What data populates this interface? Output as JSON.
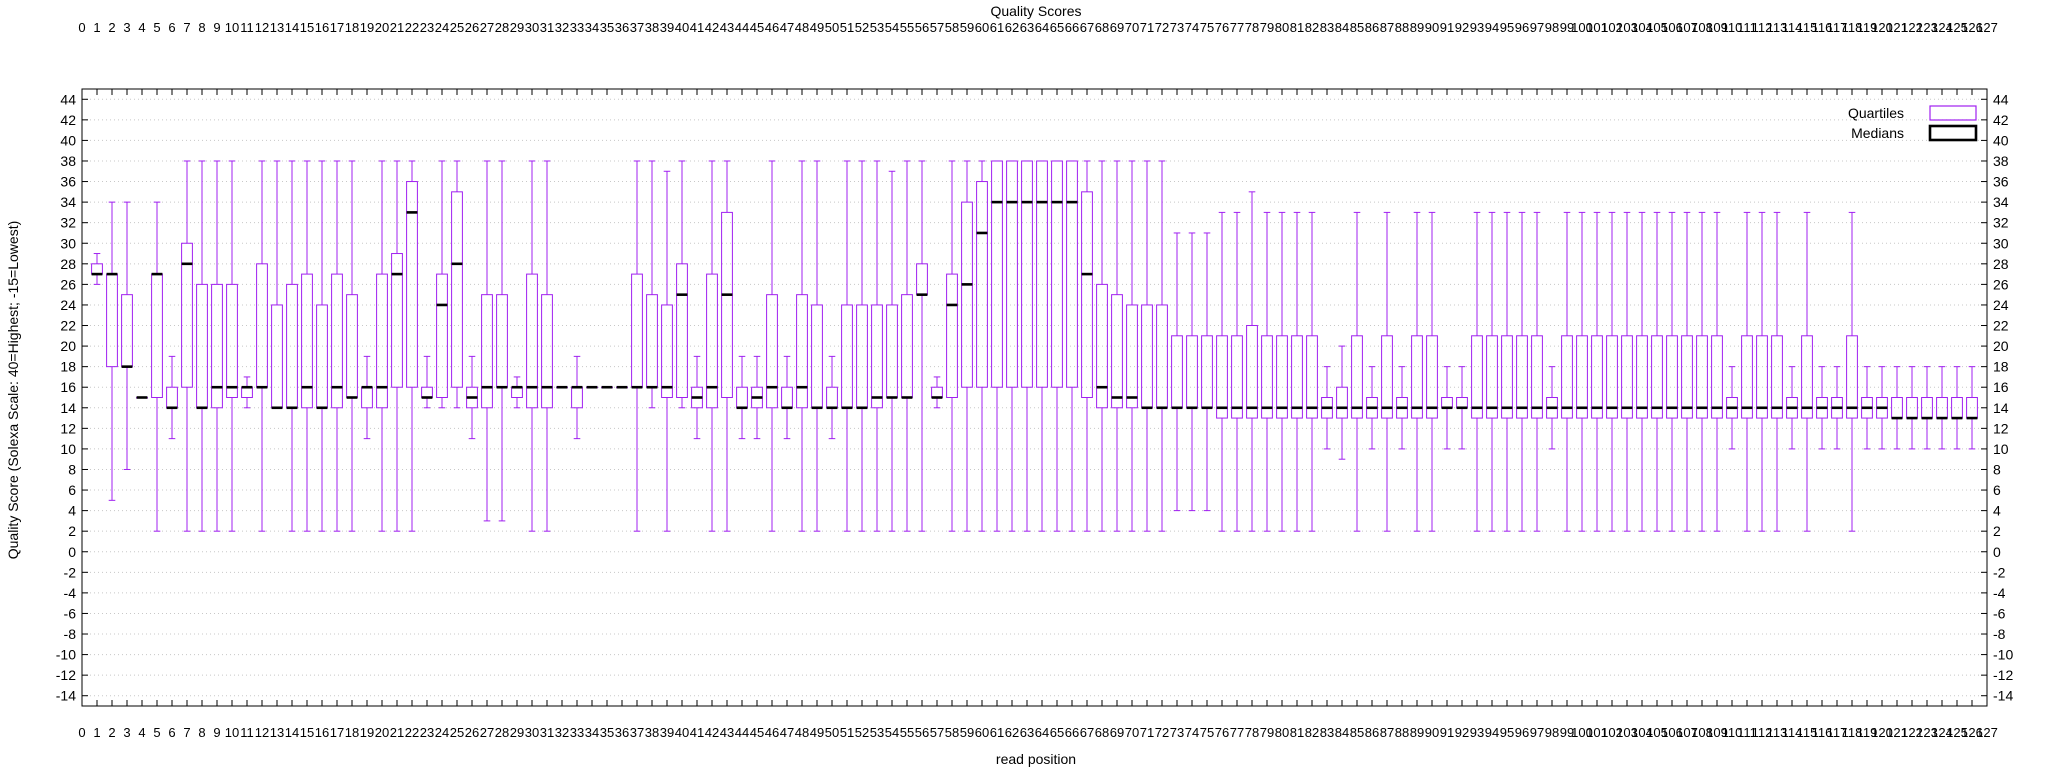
{
  "colors": {
    "quartile_box": "#a020f0",
    "median": "#000000",
    "grid": "#c8c8c8"
  },
  "chart_data": {
    "type": "box",
    "title": "Quality Scores",
    "xlabel": "read position",
    "ylabel": "Quality Score (Solexa Scale: 40=Highest; -15=Lowest)",
    "xlim": [
      0,
      127
    ],
    "ylim": [
      -15,
      45
    ],
    "y_ticks": [
      -14,
      -12,
      -10,
      -8,
      -6,
      -4,
      -2,
      0,
      2,
      4,
      6,
      8,
      10,
      12,
      14,
      16,
      18,
      20,
      22,
      24,
      26,
      28,
      30,
      32,
      34,
      36,
      38,
      40,
      42,
      44
    ],
    "grid": "horizontal dotted",
    "legend_position": "top-right",
    "legend": [
      "Quartiles",
      "Medians"
    ],
    "boxes": [
      {
        "x": 1,
        "min": 26,
        "q1": 27,
        "median": 27,
        "q3": 28,
        "max": 29
      },
      {
        "x": 2,
        "min": 5,
        "q1": 18,
        "median": 27,
        "q3": 27,
        "max": 34
      },
      {
        "x": 3,
        "min": 8,
        "q1": 18,
        "median": 18,
        "q3": 25,
        "max": 34
      },
      {
        "x": 4,
        "min": 15,
        "q1": 15,
        "median": 15,
        "q3": 15,
        "max": 15
      },
      {
        "x": 5,
        "min": 2,
        "q1": 15,
        "median": 27,
        "q3": 27,
        "max": 34
      },
      {
        "x": 6,
        "min": 11,
        "q1": 14,
        "median": 14,
        "q3": 16,
        "max": 19
      },
      {
        "x": 7,
        "min": 2,
        "q1": 16,
        "median": 28,
        "q3": 30,
        "max": 38
      },
      {
        "x": 8,
        "min": 2,
        "q1": 14,
        "median": 14,
        "q3": 26,
        "max": 38
      },
      {
        "x": 9,
        "min": 2,
        "q1": 14,
        "median": 16,
        "q3": 26,
        "max": 38
      },
      {
        "x": 10,
        "min": 2,
        "q1": 15,
        "median": 16,
        "q3": 26,
        "max": 38
      },
      {
        "x": 11,
        "min": 14,
        "q1": 15,
        "median": 16,
        "q3": 16,
        "max": 17
      },
      {
        "x": 12,
        "min": 2,
        "q1": 16,
        "median": 16,
        "q3": 28,
        "max": 38
      },
      {
        "x": 13,
        "min": 14,
        "q1": 14,
        "median": 14,
        "q3": 24,
        "max": 38
      },
      {
        "x": 14,
        "min": 2,
        "q1": 14,
        "median": 14,
        "q3": 26,
        "max": 38
      },
      {
        "x": 15,
        "min": 2,
        "q1": 14,
        "median": 16,
        "q3": 27,
        "max": 38
      },
      {
        "x": 16,
        "min": 2,
        "q1": 14,
        "median": 14,
        "q3": 24,
        "max": 38
      },
      {
        "x": 17,
        "min": 2,
        "q1": 14,
        "median": 16,
        "q3": 27,
        "max": 38
      },
      {
        "x": 18,
        "min": 2,
        "q1": 15,
        "median": 15,
        "q3": 25,
        "max": 38
      },
      {
        "x": 19,
        "min": 11,
        "q1": 14,
        "median": 16,
        "q3": 16,
        "max": 19
      },
      {
        "x": 20,
        "min": 2,
        "q1": 14,
        "median": 16,
        "q3": 27,
        "max": 38
      },
      {
        "x": 21,
        "min": 2,
        "q1": 16,
        "median": 27,
        "q3": 29,
        "max": 38
      },
      {
        "x": 22,
        "min": 2,
        "q1": 16,
        "median": 33,
        "q3": 36,
        "max": 38
      },
      {
        "x": 23,
        "min": 14,
        "q1": 15,
        "median": 15,
        "q3": 16,
        "max": 19
      },
      {
        "x": 24,
        "min": 14,
        "q1": 15,
        "median": 24,
        "q3": 27,
        "max": 38
      },
      {
        "x": 25,
        "min": 14,
        "q1": 16,
        "median": 28,
        "q3": 35,
        "max": 38
      },
      {
        "x": 26,
        "min": 11,
        "q1": 14,
        "median": 15,
        "q3": 16,
        "max": 19
      },
      {
        "x": 27,
        "min": 3,
        "q1": 14,
        "median": 16,
        "q3": 25,
        "max": 38
      },
      {
        "x": 28,
        "min": 3,
        "q1": 16,
        "median": 16,
        "q3": 25,
        "max": 38
      },
      {
        "x": 29,
        "min": 14,
        "q1": 15,
        "median": 16,
        "q3": 16,
        "max": 17
      },
      {
        "x": 30,
        "min": 2,
        "q1": 14,
        "median": 16,
        "q3": 27,
        "max": 38
      },
      {
        "x": 31,
        "min": 2,
        "q1": 14,
        "median": 16,
        "q3": 25,
        "max": 38
      },
      {
        "x": 32,
        "min": 16,
        "q1": 16,
        "median": 16,
        "q3": 16,
        "max": 16
      },
      {
        "x": 33,
        "min": 11,
        "q1": 14,
        "median": 16,
        "q3": 16,
        "max": 19
      },
      {
        "x": 34,
        "min": 16,
        "q1": 16,
        "median": 16,
        "q3": 16,
        "max": 16
      },
      {
        "x": 35,
        "min": 16,
        "q1": 16,
        "median": 16,
        "q3": 16,
        "max": 16
      },
      {
        "x": 36,
        "min": 16,
        "q1": 16,
        "median": 16,
        "q3": 16,
        "max": 16
      },
      {
        "x": 37,
        "min": 2,
        "q1": 16,
        "median": 16,
        "q3": 27,
        "max": 38
      },
      {
        "x": 38,
        "min": 14,
        "q1": 16,
        "median": 16,
        "q3": 25,
        "max": 38
      },
      {
        "x": 39,
        "min": 2,
        "q1": 15,
        "median": 16,
        "q3": 24,
        "max": 37
      },
      {
        "x": 40,
        "min": 14,
        "q1": 15,
        "median": 25,
        "q3": 28,
        "max": 38
      },
      {
        "x": 41,
        "min": 11,
        "q1": 14,
        "median": 15,
        "q3": 16,
        "max": 19
      },
      {
        "x": 42,
        "min": 2,
        "q1": 14,
        "median": 16,
        "q3": 27,
        "max": 38
      },
      {
        "x": 43,
        "min": 2,
        "q1": 15,
        "median": 25,
        "q3": 33,
        "max": 38
      },
      {
        "x": 44,
        "min": 11,
        "q1": 14,
        "median": 14,
        "q3": 16,
        "max": 19
      },
      {
        "x": 45,
        "min": 11,
        "q1": 14,
        "median": 15,
        "q3": 16,
        "max": 19
      },
      {
        "x": 46,
        "min": 2,
        "q1": 14,
        "median": 16,
        "q3": 25,
        "max": 38
      },
      {
        "x": 47,
        "min": 11,
        "q1": 14,
        "median": 14,
        "q3": 16,
        "max": 19
      },
      {
        "x": 48,
        "min": 2,
        "q1": 14,
        "median": 16,
        "q3": 25,
        "max": 38
      },
      {
        "x": 49,
        "min": 2,
        "q1": 14,
        "median": 14,
        "q3": 24,
        "max": 38
      },
      {
        "x": 50,
        "min": 11,
        "q1": 14,
        "median": 14,
        "q3": 16,
        "max": 19
      },
      {
        "x": 51,
        "min": 2,
        "q1": 14,
        "median": 14,
        "q3": 24,
        "max": 38
      },
      {
        "x": 52,
        "min": 2,
        "q1": 14,
        "median": 14,
        "q3": 24,
        "max": 38
      },
      {
        "x": 53,
        "min": 2,
        "q1": 14,
        "median": 15,
        "q3": 24,
        "max": 38
      },
      {
        "x": 54,
        "min": 2,
        "q1": 15,
        "median": 15,
        "q3": 24,
        "max": 37
      },
      {
        "x": 55,
        "min": 2,
        "q1": 15,
        "median": 15,
        "q3": 25,
        "max": 38
      },
      {
        "x": 56,
        "min": 2,
        "q1": 25,
        "median": 25,
        "q3": 28,
        "max": 38
      },
      {
        "x": 57,
        "min": 14,
        "q1": 15,
        "median": 15,
        "q3": 16,
        "max": 17
      },
      {
        "x": 58,
        "min": 2,
        "q1": 15,
        "median": 24,
        "q3": 27,
        "max": 38
      },
      {
        "x": 59,
        "min": 2,
        "q1": 16,
        "median": 26,
        "q3": 34,
        "max": 38
      },
      {
        "x": 60,
        "min": 2,
        "q1": 16,
        "median": 31,
        "q3": 36,
        "max": 38
      },
      {
        "x": 61,
        "min": 2,
        "q1": 16,
        "median": 34,
        "q3": 38,
        "max": 38
      },
      {
        "x": 62,
        "min": 2,
        "q1": 16,
        "median": 34,
        "q3": 38,
        "max": 38
      },
      {
        "x": 63,
        "min": 2,
        "q1": 16,
        "median": 34,
        "q3": 38,
        "max": 38
      },
      {
        "x": 64,
        "min": 2,
        "q1": 16,
        "median": 34,
        "q3": 38,
        "max": 38
      },
      {
        "x": 65,
        "min": 2,
        "q1": 16,
        "median": 34,
        "q3": 38,
        "max": 38
      },
      {
        "x": 66,
        "min": 2,
        "q1": 16,
        "median": 34,
        "q3": 38,
        "max": 38
      },
      {
        "x": 67,
        "min": 2,
        "q1": 15,
        "median": 27,
        "q3": 35,
        "max": 38
      },
      {
        "x": 68,
        "min": 2,
        "q1": 14,
        "median": 16,
        "q3": 26,
        "max": 38
      },
      {
        "x": 69,
        "min": 2,
        "q1": 14,
        "median": 15,
        "q3": 25,
        "max": 38
      },
      {
        "x": 70,
        "min": 2,
        "q1": 14,
        "median": 15,
        "q3": 24,
        "max": 38
      },
      {
        "x": 71,
        "min": 2,
        "q1": 14,
        "median": 14,
        "q3": 24,
        "max": 38
      },
      {
        "x": 72,
        "min": 2,
        "q1": 14,
        "median": 14,
        "q3": 24,
        "max": 38
      },
      {
        "x": 73,
        "min": 4,
        "q1": 14,
        "median": 14,
        "q3": 21,
        "max": 31
      },
      {
        "x": 74,
        "min": 4,
        "q1": 14,
        "median": 14,
        "q3": 21,
        "max": 31
      },
      {
        "x": 75,
        "min": 4,
        "q1": 14,
        "median": 14,
        "q3": 21,
        "max": 31
      },
      {
        "x": 76,
        "min": 2,
        "q1": 13,
        "median": 14,
        "q3": 21,
        "max": 33
      },
      {
        "x": 77,
        "min": 2,
        "q1": 13,
        "median": 14,
        "q3": 21,
        "max": 33
      },
      {
        "x": 78,
        "min": 2,
        "q1": 13,
        "median": 14,
        "q3": 22,
        "max": 35
      },
      {
        "x": 79,
        "min": 2,
        "q1": 13,
        "median": 14,
        "q3": 21,
        "max": 33
      },
      {
        "x": 80,
        "min": 2,
        "q1": 13,
        "median": 14,
        "q3": 21,
        "max": 33
      },
      {
        "x": 81,
        "min": 2,
        "q1": 13,
        "median": 14,
        "q3": 21,
        "max": 33
      },
      {
        "x": 82,
        "min": 2,
        "q1": 13,
        "median": 14,
        "q3": 21,
        "max": 33
      },
      {
        "x": 83,
        "min": 10,
        "q1": 13,
        "median": 14,
        "q3": 15,
        "max": 18
      },
      {
        "x": 84,
        "min": 9,
        "q1": 13,
        "median": 14,
        "q3": 16,
        "max": 20
      },
      {
        "x": 85,
        "min": 2,
        "q1": 13,
        "median": 14,
        "q3": 21,
        "max": 33
      },
      {
        "x": 86,
        "min": 10,
        "q1": 13,
        "median": 14,
        "q3": 15,
        "max": 18
      },
      {
        "x": 87,
        "min": 2,
        "q1": 13,
        "median": 14,
        "q3": 21,
        "max": 33
      },
      {
        "x": 88,
        "min": 10,
        "q1": 13,
        "median": 14,
        "q3": 15,
        "max": 18
      },
      {
        "x": 89,
        "min": 2,
        "q1": 13,
        "median": 14,
        "q3": 21,
        "max": 33
      },
      {
        "x": 90,
        "min": 2,
        "q1": 13,
        "median": 14,
        "q3": 21,
        "max": 33
      },
      {
        "x": 91,
        "min": 10,
        "q1": 14,
        "median": 14,
        "q3": 15,
        "max": 18
      },
      {
        "x": 92,
        "min": 10,
        "q1": 14,
        "median": 14,
        "q3": 15,
        "max": 18
      },
      {
        "x": 93,
        "min": 2,
        "q1": 13,
        "median": 14,
        "q3": 21,
        "max": 33
      },
      {
        "x": 94,
        "min": 2,
        "q1": 13,
        "median": 14,
        "q3": 21,
        "max": 33
      },
      {
        "x": 95,
        "min": 2,
        "q1": 13,
        "median": 14,
        "q3": 21,
        "max": 33
      },
      {
        "x": 96,
        "min": 2,
        "q1": 13,
        "median": 14,
        "q3": 21,
        "max": 33
      },
      {
        "x": 97,
        "min": 2,
        "q1": 13,
        "median": 14,
        "q3": 21,
        "max": 33
      },
      {
        "x": 98,
        "min": 10,
        "q1": 13,
        "median": 14,
        "q3": 15,
        "max": 18
      },
      {
        "x": 99,
        "min": 2,
        "q1": 13,
        "median": 14,
        "q3": 21,
        "max": 33
      },
      {
        "x": 100,
        "min": 2,
        "q1": 13,
        "median": 14,
        "q3": 21,
        "max": 33
      },
      {
        "x": 101,
        "min": 2,
        "q1": 13,
        "median": 14,
        "q3": 21,
        "max": 33
      },
      {
        "x": 102,
        "min": 2,
        "q1": 13,
        "median": 14,
        "q3": 21,
        "max": 33
      },
      {
        "x": 103,
        "min": 2,
        "q1": 13,
        "median": 14,
        "q3": 21,
        "max": 33
      },
      {
        "x": 104,
        "min": 2,
        "q1": 13,
        "median": 14,
        "q3": 21,
        "max": 33
      },
      {
        "x": 105,
        "min": 2,
        "q1": 13,
        "median": 14,
        "q3": 21,
        "max": 33
      },
      {
        "x": 106,
        "min": 2,
        "q1": 13,
        "median": 14,
        "q3": 21,
        "max": 33
      },
      {
        "x": 107,
        "min": 2,
        "q1": 13,
        "median": 14,
        "q3": 21,
        "max": 33
      },
      {
        "x": 108,
        "min": 2,
        "q1": 13,
        "median": 14,
        "q3": 21,
        "max": 33
      },
      {
        "x": 109,
        "min": 2,
        "q1": 13,
        "median": 14,
        "q3": 21,
        "max": 33
      },
      {
        "x": 110,
        "min": 10,
        "q1": 13,
        "median": 14,
        "q3": 15,
        "max": 18
      },
      {
        "x": 111,
        "min": 2,
        "q1": 13,
        "median": 14,
        "q3": 21,
        "max": 33
      },
      {
        "x": 112,
        "min": 2,
        "q1": 13,
        "median": 14,
        "q3": 21,
        "max": 33
      },
      {
        "x": 113,
        "min": 2,
        "q1": 13,
        "median": 14,
        "q3": 21,
        "max": 33
      },
      {
        "x": 114,
        "min": 10,
        "q1": 13,
        "median": 14,
        "q3": 15,
        "max": 18
      },
      {
        "x": 115,
        "min": 2,
        "q1": 13,
        "median": 14,
        "q3": 21,
        "max": 33
      },
      {
        "x": 116,
        "min": 10,
        "q1": 13,
        "median": 14,
        "q3": 15,
        "max": 18
      },
      {
        "x": 117,
        "min": 10,
        "q1": 13,
        "median": 14,
        "q3": 15,
        "max": 18
      },
      {
        "x": 118,
        "min": 2,
        "q1": 13,
        "median": 14,
        "q3": 21,
        "max": 33
      },
      {
        "x": 119,
        "min": 10,
        "q1": 13,
        "median": 14,
        "q3": 15,
        "max": 18
      },
      {
        "x": 120,
        "min": 10,
        "q1": 13,
        "median": 14,
        "q3": 15,
        "max": 18
      },
      {
        "x": 121,
        "min": 10,
        "q1": 13,
        "median": 13,
        "q3": 15,
        "max": 18
      },
      {
        "x": 122,
        "min": 10,
        "q1": 13,
        "median": 13,
        "q3": 15,
        "max": 18
      },
      {
        "x": 123,
        "min": 10,
        "q1": 13,
        "median": 13,
        "q3": 15,
        "max": 18
      },
      {
        "x": 124,
        "min": 10,
        "q1": 13,
        "median": 13,
        "q3": 15,
        "max": 18
      },
      {
        "x": 125,
        "min": 10,
        "q1": 13,
        "median": 13,
        "q3": 15,
        "max": 18
      },
      {
        "x": 126,
        "min": 10,
        "q1": 13,
        "median": 13,
        "q3": 15,
        "max": 18
      }
    ]
  }
}
